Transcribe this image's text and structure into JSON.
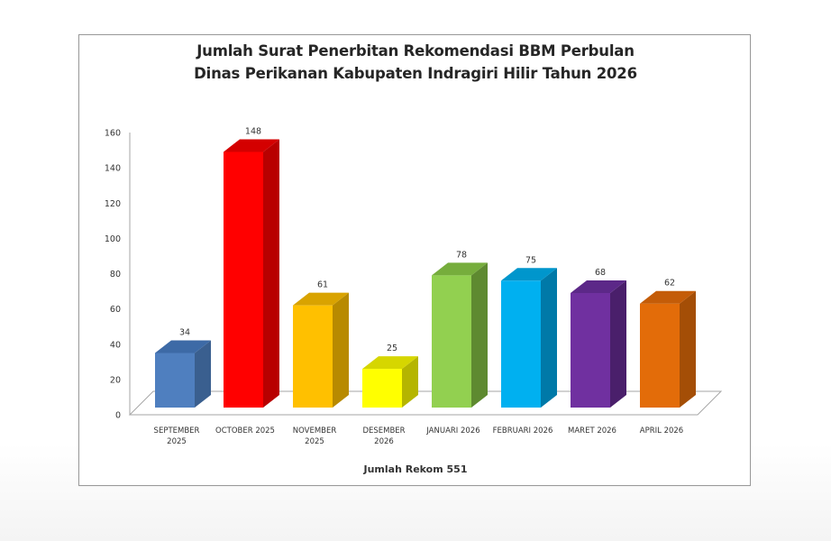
{
  "chart_data": {
    "type": "bar",
    "style": "3d-column",
    "title": "Jumlah Surat Penerbitan Rekomendasi BBM Perbulan",
    "subtitle": "Dinas Perikanan Kabupaten Indragiri Hilir Tahun 2026",
    "title_lines": [
      "Jumlah Surat Penerbitan Rekomendasi BBM Perbulan",
      "Dinas Perikanan Kabupaten Indragiri Hilir Tahun 2026"
    ],
    "xlabel": "Jumlah Rekom 551",
    "ylabel": "",
    "ylim": [
      0,
      160
    ],
    "yticks": [
      0,
      20,
      40,
      60,
      80,
      100,
      120,
      140,
      160
    ],
    "grid": false,
    "legend": null,
    "categories": [
      "SEPTEMBER 2025",
      "OCTOBER 2025",
      "NOVEMBER 2025",
      "DESEMBER 2026",
      "JANUARI 2026",
      "FEBRUARI 2026",
      "MARET 2026",
      "APRIL 2026"
    ],
    "category_lines": [
      [
        "SEPTEMBER",
        "2025"
      ],
      [
        "OCTOBER 2025"
      ],
      [
        "NOVEMBER",
        "2025"
      ],
      [
        "DESEMBER",
        "2026"
      ],
      [
        "JANUARI 2026"
      ],
      [
        "FEBRUARI 2026"
      ],
      [
        "MARET 2026"
      ],
      [
        "APRIL 2026"
      ]
    ],
    "values": [
      34,
      148,
      61,
      25,
      78,
      75,
      68,
      62
    ],
    "data_labels": [
      "34",
      "148",
      "61",
      "25",
      "78",
      "75",
      "68",
      "62"
    ],
    "colors": [
      "#4f7fbf",
      "#ff0000",
      "#ffc000",
      "#ffff00",
      "#92d050",
      "#00b0f0",
      "#7030a0",
      "#e36c09"
    ],
    "side_colors": [
      "#3a5f8f",
      "#b80000",
      "#b88a00",
      "#b5b500",
      "#5e8a30",
      "#0079a8",
      "#4a1f6b",
      "#a44e06"
    ],
    "top_colors": [
      "#3d6aa6",
      "#d40000",
      "#d9a300",
      "#d6d600",
      "#76ad3c",
      "#0096cc",
      "#5c2888",
      "#c45c08"
    ]
  }
}
